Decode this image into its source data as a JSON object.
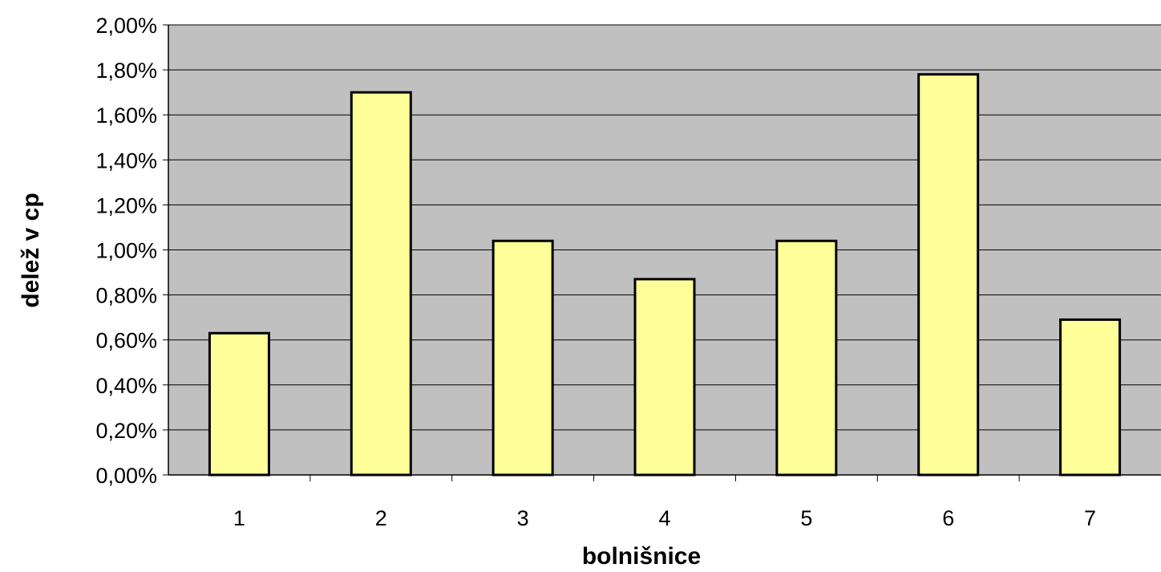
{
  "chart_data": {
    "type": "bar",
    "title": "",
    "xlabel": "bolnišnice",
    "ylabel": "delež v cp",
    "categories": [
      "1",
      "2",
      "3",
      "4",
      "5",
      "6",
      "7"
    ],
    "values": [
      0.63,
      1.7,
      1.04,
      0.87,
      1.04,
      1.78,
      0.69
    ],
    "ylim": [
      0,
      2.0
    ],
    "yticks": [
      "0,00%",
      "0,20%",
      "0,40%",
      "0,60%",
      "0,80%",
      "1,00%",
      "1,20%",
      "1,40%",
      "1,60%",
      "1,80%",
      "2,00%"
    ],
    "grid": true,
    "legend": "none",
    "colors": {
      "bar_fill": "#ffff99",
      "bar_stroke": "#000000",
      "plot_background": "#c0c0c0",
      "gridline": "#000000"
    }
  }
}
